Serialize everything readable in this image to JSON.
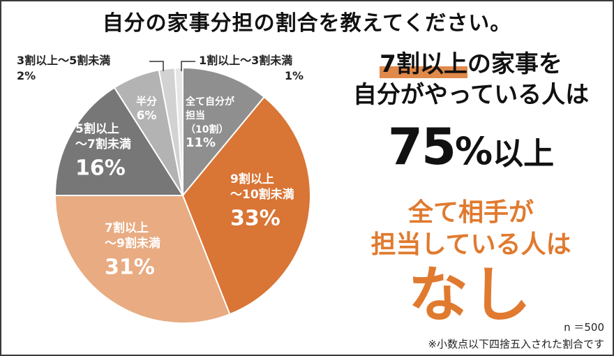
{
  "title": "自分の家事分担の割合を教えてください。",
  "chart_data": {
    "type": "pie",
    "title": "自分の家事分担の割合を教えてください。",
    "slices": [
      {
        "name": "全て自分が担当（10割）",
        "label_lines": [
          "全て自分が",
          "担当",
          "（10割）"
        ],
        "value": 11,
        "value_label": "11%",
        "color": "#8f8f8f"
      },
      {
        "name": "9割以上〜10割未満",
        "label_lines": [
          "9割以上",
          "〜10割未満"
        ],
        "value": 33,
        "value_label": "33%",
        "color": "#d97535"
      },
      {
        "name": "7割以上〜9割未満",
        "label_lines": [
          "7割以上",
          "〜9割未満"
        ],
        "value": 31,
        "value_label": "31%",
        "color": "#e8ab82"
      },
      {
        "name": "5割以上〜7割未満",
        "label_lines": [
          "5割以上",
          "〜7割未満"
        ],
        "value": 16,
        "value_label": "16%",
        "color": "#777777"
      },
      {
        "name": "半分",
        "label_lines": [
          "半分"
        ],
        "value": 6,
        "value_label": "6%",
        "color": "#b3b3b3"
      },
      {
        "name": "3割以上〜5割未満",
        "label_lines": [
          "3割以上〜5割未満"
        ],
        "value": 2,
        "value_label": "2%",
        "color": "#d2d2d2"
      },
      {
        "name": "1割以上〜3割未満",
        "label_lines": [
          "1割以上〜3割未満"
        ],
        "value": 1,
        "value_label": "1%",
        "color": "#e6e6e6"
      }
    ]
  },
  "headline": {
    "line1_highlight": "7割以上",
    "line1_rest": "の家事を",
    "line2": "自分がやっている人は",
    "big_number": "75",
    "big_percent": "%",
    "big_suffix": "以上"
  },
  "sub": {
    "line1": "全て相手が",
    "line2": "担当している人は",
    "big": "なし"
  },
  "notes": {
    "n": "n ＝500",
    "footnote": "※小数点以下四捨五入された割合です"
  },
  "colors": {
    "orange": "#e07a2f",
    "dark": "#111111"
  }
}
